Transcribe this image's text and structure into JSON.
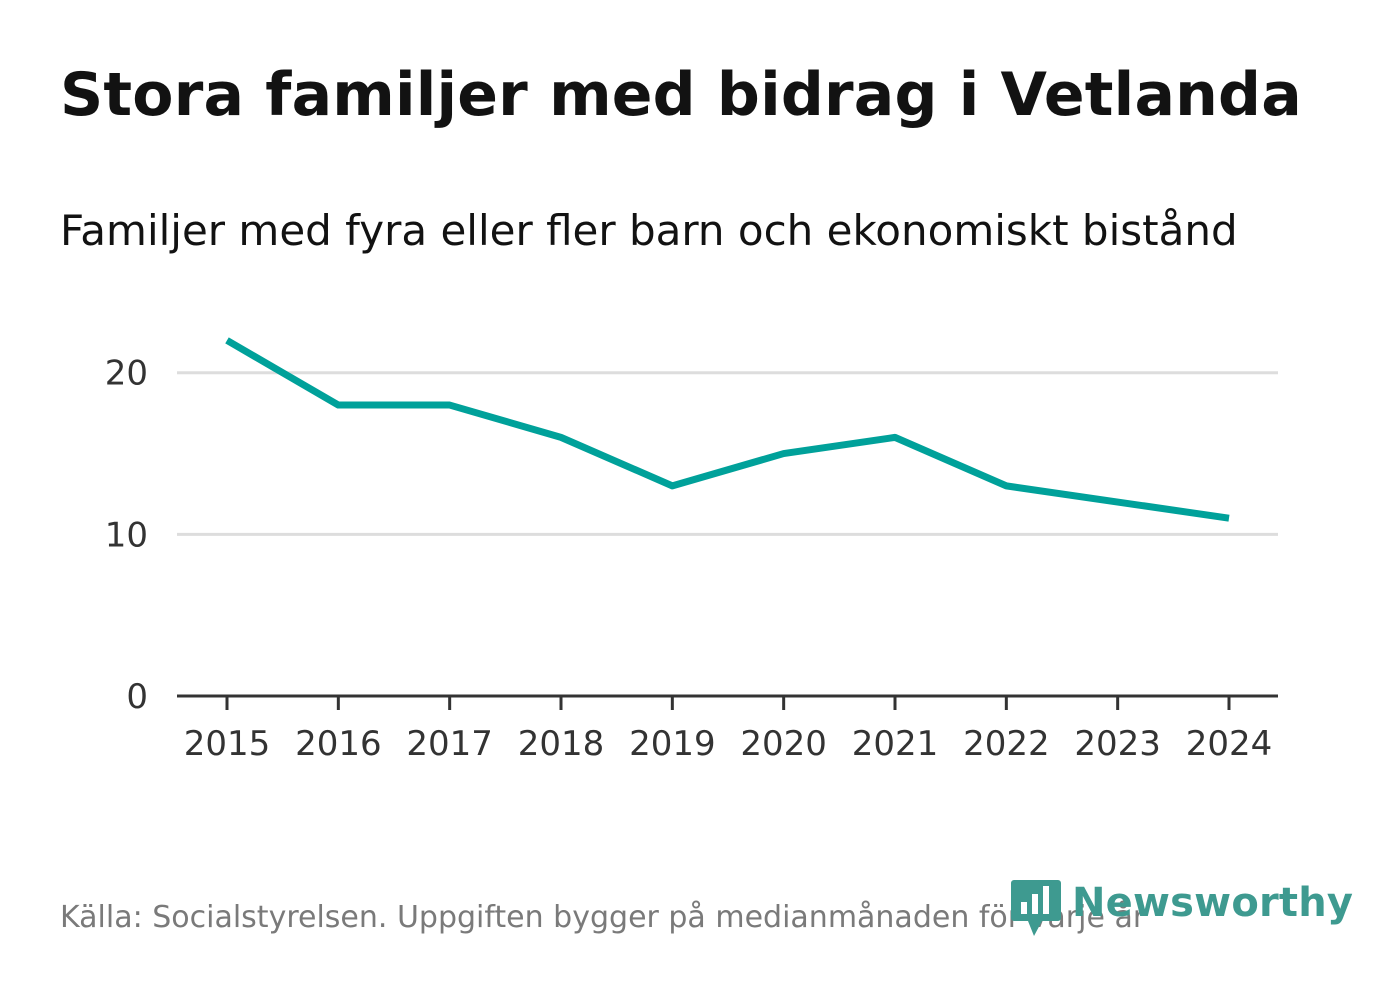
{
  "title": "Stora familjer med bidrag i Vetlanda",
  "subtitle": "Familjer med fyra eller fler barn och ekonomiskt bistånd",
  "source": "Källa: Socialstyrelsen. Uppgiften bygger på medianmånaden för varje år",
  "brand": {
    "name": "Newsworthy",
    "icon": "newsworthy-logo-icon"
  },
  "colors": {
    "line": "#00a19a",
    "grid": "#dddddd",
    "axis": "#333333",
    "brand": "#3e9a90"
  },
  "chart_data": {
    "type": "line",
    "title": "Stora familjer med bidrag i Vetlanda",
    "subtitle": "Familjer med fyra eller fler barn och ekonomiskt bistånd",
    "xlabel": "",
    "ylabel": "",
    "x": [
      "2015",
      "2016",
      "2017",
      "2018",
      "2019",
      "2020",
      "2021",
      "2022",
      "2023",
      "2024"
    ],
    "series": [
      {
        "name": "Familjer med fyra eller fler barn och ekonomiskt bistånd",
        "values": [
          22,
          18,
          18,
          16,
          13,
          15,
          16,
          13,
          12,
          11
        ]
      }
    ],
    "yticks": [
      0,
      10,
      20
    ],
    "ylim": [
      0,
      24.5
    ],
    "grid": true,
    "legend": "none"
  }
}
